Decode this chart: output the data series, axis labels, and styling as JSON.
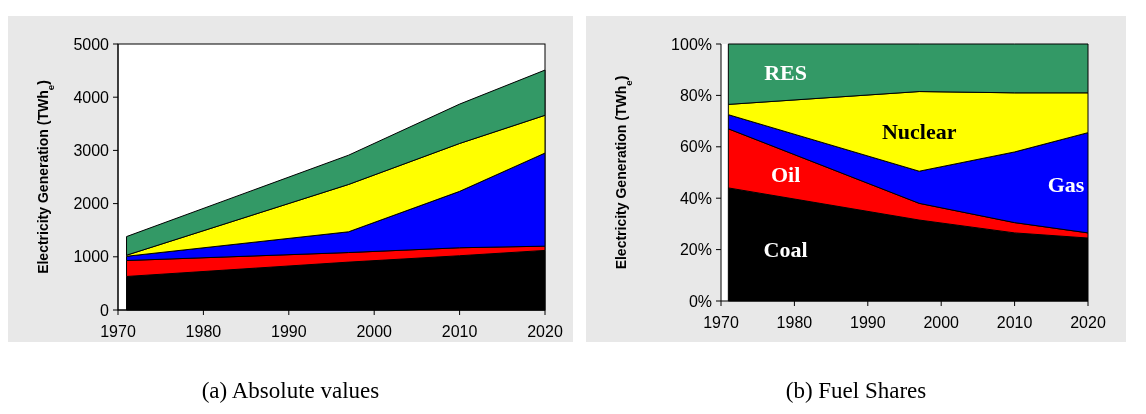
{
  "chart_data": [
    {
      "type": "area",
      "title": "(a) Absolute values",
      "ylabel": "Electricity Generation (TWh$_{e}$)",
      "stacked": true,
      "x": [
        1971,
        1997,
        2010,
        2020
      ],
      "xlim": [
        1970,
        2020
      ],
      "xticks": [
        1970,
        1980,
        1990,
        2000,
        2010,
        2020
      ],
      "ylim": [
        0,
        5000
      ],
      "yticks": [
        0,
        1000,
        2000,
        3000,
        4000,
        5000
      ],
      "grid": false,
      "series": [
        {
          "color": "#000000",
          "values": [
            630,
            900,
            1020,
            1120
          ]
        },
        {
          "color": "#ff0000",
          "values": [
            300,
            180,
            150,
            80
          ]
        },
        {
          "color": "#0000ff",
          "values": [
            80,
            390,
            1060,
            1750
          ]
        },
        {
          "color": "#ffff00",
          "values": [
            20,
            890,
            900,
            710
          ]
        },
        {
          "color": "#339966",
          "values": [
            350,
            550,
            740,
            850
          ]
        }
      ]
    },
    {
      "type": "area",
      "title": "(b) Fuel Shares",
      "ylabel": "Electricity Generation (TWh$_{e}$)",
      "stacked": true,
      "x": [
        1971,
        1997,
        2010,
        2020
      ],
      "xlim": [
        1970,
        2020
      ],
      "xticks": [
        1970,
        1980,
        1990,
        2000,
        2010,
        2020
      ],
      "ylim": [
        0,
        100
      ],
      "yticks": [
        {
          "value": 0,
          "label": "0%"
        },
        {
          "value": 20,
          "label": "20%"
        },
        {
          "value": 40,
          "label": "40%"
        },
        {
          "value": 60,
          "label": "60%"
        },
        {
          "value": 80,
          "label": "80%"
        },
        {
          "value": 100,
          "label": "100%"
        }
      ],
      "grid": false,
      "series": [
        {
          "name": "Coal",
          "color": "#000000",
          "values": [
            44,
            31.5,
            26.5,
            24.5
          ]
        },
        {
          "name": "Oil",
          "color": "#ff0000",
          "values": [
            23,
            6.5,
            4,
            2
          ]
        },
        {
          "name": "Gas",
          "color": "#0000ff",
          "values": [
            5.5,
            12.5,
            27.5,
            39
          ]
        },
        {
          "name": "Nuclear",
          "color": "#ffff00",
          "values": [
            4,
            31,
            23,
            15.5
          ]
        },
        {
          "name": "RES",
          "color": "#339966",
          "values": [
            23.5,
            18.5,
            19,
            19
          ]
        }
      ]
    }
  ]
}
